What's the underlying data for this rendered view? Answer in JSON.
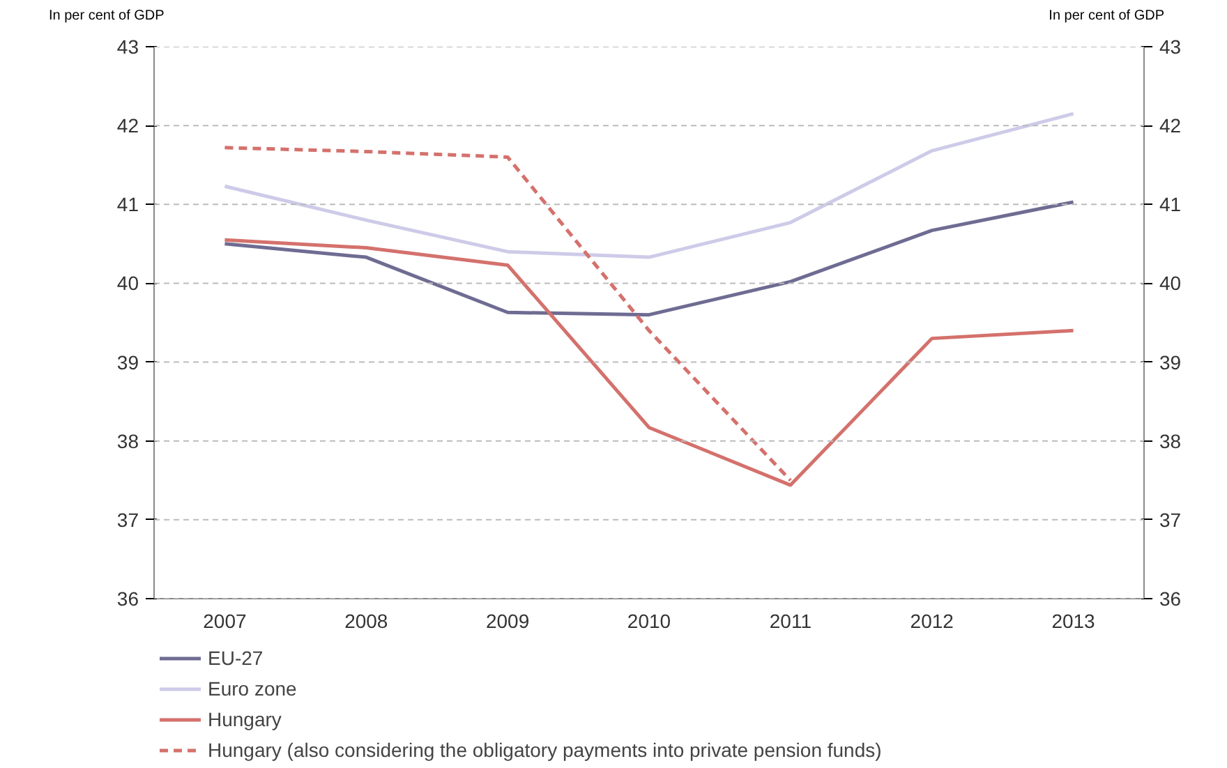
{
  "chart_data": {
    "type": "line",
    "ylabel": "In per cent of GDP",
    "y2label": "In per cent of GDP",
    "categories": [
      "2007",
      "2008",
      "2009",
      "2010",
      "2011",
      "2012",
      "2013"
    ],
    "ylim": [
      36,
      43
    ],
    "yticks": [
      36,
      37,
      38,
      39,
      40,
      41,
      42,
      43
    ],
    "y2lim": [
      36,
      43
    ],
    "y2ticks": [
      36,
      37,
      38,
      39,
      40,
      41,
      42,
      43
    ],
    "grid": "y",
    "legend": "bottom",
    "marker": "none",
    "series": [
      {
        "name": "EU-27",
        "color": "#6e6c92",
        "values": [
          40.5,
          40.33,
          39.63,
          39.6,
          40.02,
          40.67,
          41.03
        ]
      },
      {
        "name": "Euro zone",
        "color": "#cdcbe8",
        "values": [
          41.23,
          40.8,
          40.4,
          40.33,
          40.77,
          41.68,
          42.15
        ]
      },
      {
        "name": "Hungary",
        "color": "#d4716c",
        "values": [
          40.55,
          40.45,
          40.23,
          38.17,
          37.44,
          39.3,
          39.4
        ]
      },
      {
        "name": "Hungary (also considering the obligatory payments into private pension funds)",
        "color": "#d4716c",
        "line_style": "dashed",
        "values": [
          41.72,
          41.67,
          41.6,
          39.4,
          37.5,
          null,
          null
        ]
      }
    ]
  }
}
